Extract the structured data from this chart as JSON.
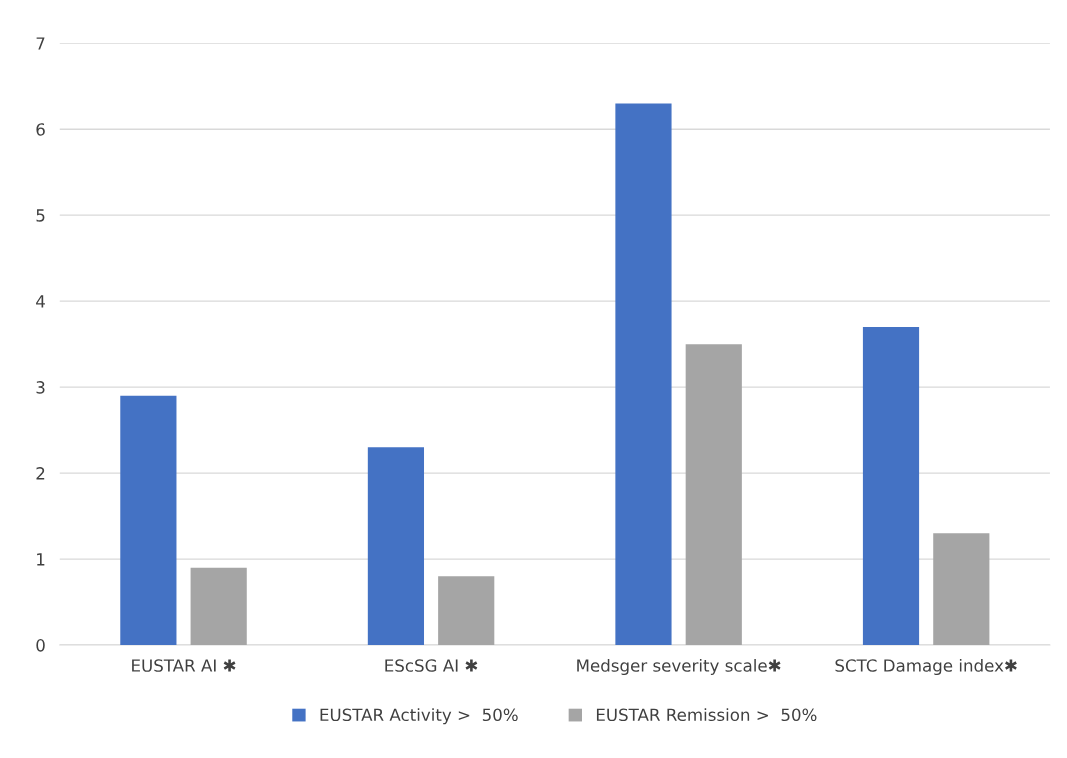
{
  "chart_data": {
    "type": "bar",
    "categories": [
      "EUSTAR AI ✱",
      "EScSG AI ✱",
      "Medsger severity scale✱",
      "SCTC Damage index✱"
    ],
    "series": [
      {
        "name": "EUSTAR Activity >  50%",
        "color": "#4472c4",
        "values": [
          2.9,
          2.3,
          6.3,
          3.7
        ]
      },
      {
        "name": "EUSTAR Remission >  50%",
        "color": "#a5a5a5",
        "values": [
          0.9,
          0.8,
          3.5,
          1.3
        ]
      }
    ],
    "ylim": [
      0,
      7
    ],
    "yticks": [
      0,
      1,
      2,
      3,
      4,
      5,
      6,
      7
    ],
    "grid": "y",
    "legend": "bottom"
  }
}
